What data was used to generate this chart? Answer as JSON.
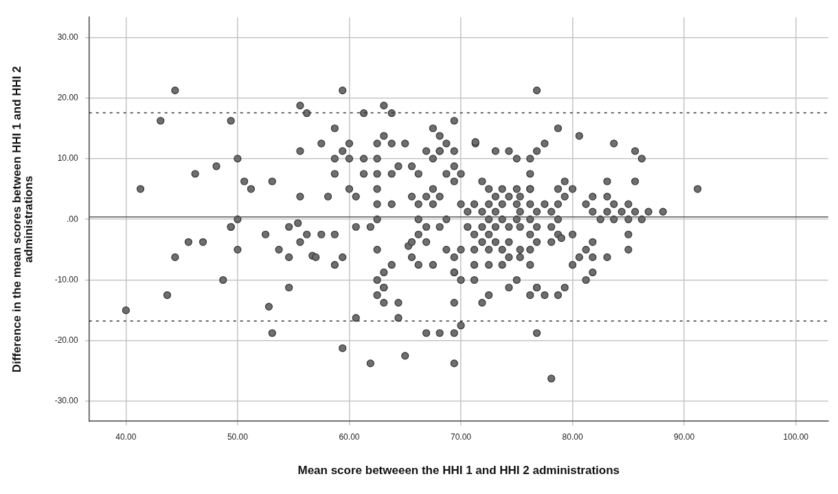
{
  "chart_data": {
    "type": "scatter",
    "xlabel": "Mean score betweeen the HHI 1 and HHI 2 administrations",
    "ylabel": "Difference in the mean scores between HHI 1 and HHI 2 administrations",
    "xlim": [
      36.7,
      102.9
    ],
    "ylim": [
      -33.3,
      33.3
    ],
    "xticks": [
      {
        "value": 40,
        "label": "40.00"
      },
      {
        "value": 50,
        "label": "50.00"
      },
      {
        "value": 60,
        "label": "60.00"
      },
      {
        "value": 70,
        "label": "70.00"
      },
      {
        "value": 80,
        "label": "80.00"
      },
      {
        "value": 90,
        "label": "90.00"
      },
      {
        "value": 100,
        "label": "100.00"
      }
    ],
    "yticks": [
      {
        "value": -30,
        "label": "-30.00"
      },
      {
        "value": -20,
        "label": "-20.00"
      },
      {
        "value": -10,
        "label": "-10.00"
      },
      {
        "value": 0,
        "label": ".00"
      },
      {
        "value": 10,
        "label": "10.00"
      },
      {
        "value": 20,
        "label": "20.00"
      },
      {
        "value": 30,
        "label": "30.00"
      }
    ],
    "grid": true,
    "legend": false,
    "marker": "circle",
    "ref_lines": [
      {
        "axis": "y",
        "value": 0.39,
        "color": "#555555",
        "line_style": "solid"
      },
      {
        "axis": "y",
        "value": 17.56,
        "color": "#333333",
        "line_style": "dashed"
      },
      {
        "axis": "y",
        "value": -16.78,
        "color": "#333333",
        "line_style": "dashed"
      }
    ],
    "series": [
      {
        "color": "#6e6e6e",
        "x": [
          40,
          41.3,
          43.1,
          43.7,
          44.4,
          44.4,
          45.6,
          46.2,
          46.9,
          48.1,
          48.7,
          49.4,
          49.4,
          49.4,
          50,
          50,
          50,
          50.6,
          51.2,
          52.5,
          52.8,
          53.1,
          53.1,
          53.7,
          54.6,
          54.6,
          54.6,
          55.4,
          55.6,
          55.6,
          55.6,
          55.6,
          56.2,
          56.2,
          56.7,
          57,
          57.5,
          57.5,
          58.1,
          58.7,
          58.7,
          58.7,
          58.7,
          58.7,
          59.4,
          59.4,
          59.4,
          59.4,
          60,
          60,
          60,
          60.6,
          60.6,
          60.6,
          61.3,
          61.3,
          61.3,
          61.9,
          61.9,
          62.5,
          62.5,
          62.5,
          62.5,
          62.5,
          62.5,
          62.5,
          62.5,
          62.5,
          63.1,
          63.1,
          63.1,
          63.1,
          63.1,
          63.1,
          63.8,
          63.8,
          63.8,
          63.8,
          63.8,
          64.4,
          64.4,
          64.4,
          65,
          65,
          65.3,
          65.6,
          65.6,
          65.6,
          65.6,
          66.2,
          66.2,
          66.2,
          66.2,
          66.2,
          66.9,
          66.9,
          66.9,
          66.9,
          66.9,
          67.5,
          67.5,
          67.5,
          67.5,
          67.5,
          68.1,
          68.1,
          68.1,
          68.1,
          68.1,
          68.1,
          68.7,
          68.7,
          68.7,
          68.7,
          69.4,
          69.4,
          69.4,
          69.4,
          69.4,
          69.4,
          69.4,
          69.4,
          69.4,
          69.4,
          70,
          70,
          70,
          70,
          70,
          70.6,
          70.6,
          71.2,
          71.2,
          71.2,
          71.2,
          71.2,
          71.3,
          71.3,
          71.9,
          71.9,
          71.9,
          71.9,
          71.9,
          72.5,
          72.5,
          72.5,
          72.5,
          72.5,
          72.5,
          72.5,
          73.1,
          73.1,
          73.1,
          73.1,
          73.1,
          73.7,
          73.7,
          73.7,
          73.7,
          73.7,
          74.3,
          74.3,
          74.3,
          74.3,
          74.3,
          74.3,
          75,
          75,
          75,
          75,
          75,
          75.3,
          75.3,
          75.3,
          75.3,
          75.3,
          76.2,
          76.2,
          76.2,
          76.2,
          76.2,
          76.2,
          76.2,
          76.2,
          76.2,
          76.2,
          76.8,
          76.8,
          76.8,
          76.8,
          76.8,
          76.8,
          76.8,
          76.8,
          77.5,
          77.5,
          77.5,
          78.1,
          78.1,
          78.1,
          78.1,
          78.7,
          78.7,
          78.7,
          78.7,
          78.7,
          78.7,
          79,
          79.3,
          79.3,
          79.3,
          80,
          80,
          80,
          80.6,
          80.6,
          81.2,
          81.2,
          81.2,
          81.8,
          81.8,
          81.8,
          81.8,
          81.8,
          82.5,
          83.1,
          83.1,
          83.1,
          83.1,
          83.7,
          83.7,
          83.7,
          84.4,
          85,
          85,
          85,
          85,
          85.6,
          85.6,
          85.6,
          86.2,
          86.2,
          86.8,
          88.1,
          91.2
        ],
        "values": [
          -15,
          5,
          16.25,
          -12.5,
          21.25,
          -6.25,
          -3.75,
          7.5,
          -3.75,
          8.75,
          -10,
          16.25,
          -1.25,
          -1.25,
          10,
          0,
          -5,
          6.25,
          5,
          -2.5,
          -14.4,
          6.25,
          -18.75,
          -5,
          -1.25,
          -6.25,
          -11.25,
          -0.63,
          18.75,
          11.25,
          3.75,
          -3.75,
          17.5,
          -2.5,
          -6,
          -6.25,
          12.5,
          -2.5,
          3.75,
          15,
          10,
          7.5,
          -2.5,
          -7.5,
          21.25,
          11.25,
          -6.25,
          -21.25,
          12.5,
          10,
          5,
          3.75,
          -1.25,
          -16.25,
          17.5,
          10,
          7.5,
          -1.25,
          -23.75,
          12.5,
          10,
          7.5,
          5,
          2.5,
          0,
          -5,
          -10,
          -12.5,
          18.75,
          13.75,
          -8.75,
          -11.25,
          -13.75,
          -11.25,
          17.5,
          12.5,
          7.5,
          2.5,
          -7.5,
          8.75,
          -13.75,
          -16.25,
          12.5,
          -22.5,
          -4.4,
          8.75,
          3.75,
          -3.75,
          -6.25,
          7.5,
          2.5,
          0,
          -2.5,
          -7.5,
          11.25,
          3.75,
          -1.25,
          -3.75,
          -18.75,
          15,
          10,
          5,
          2.5,
          -7.5,
          13.75,
          11.25,
          11.25,
          3.75,
          -1.25,
          -18.75,
          12.5,
          7.5,
          0,
          -5,
          16.25,
          11.25,
          8.75,
          6.25,
          -6.25,
          -8.75,
          -13.75,
          -18.75,
          -23.75,
          -8.75,
          7.5,
          2.5,
          -5,
          -10,
          -17.5,
          1.25,
          -1.25,
          2.5,
          -2.5,
          -5,
          -7.5,
          -10,
          12.5,
          12.75,
          6.25,
          1.25,
          -1.25,
          -3.75,
          -13.75,
          5,
          2.5,
          0,
          -2.5,
          -5,
          -7.5,
          -12.5,
          11.25,
          3.75,
          1.25,
          -1.25,
          -3.75,
          5,
          2.5,
          0,
          -5,
          -7.5,
          11.25,
          3.75,
          -1.25,
          -3.75,
          -6.25,
          -11.25,
          10,
          5,
          2.5,
          0,
          -10,
          3.75,
          1.25,
          -1.25,
          -5,
          -6.25,
          10,
          7.5,
          5,
          5,
          2.5,
          0,
          -2.5,
          -5,
          -7.5,
          -12.5,
          21.25,
          11.25,
          1.25,
          -1.25,
          -3.75,
          -11.25,
          -11.25,
          -18.75,
          12.5,
          2.5,
          -12.5,
          1.25,
          -1.25,
          -3.75,
          -26.25,
          15,
          5,
          2.5,
          0,
          -2.5,
          -12.5,
          -3.1,
          6.25,
          3.75,
          -11.25,
          5,
          -2.5,
          -7.5,
          13.75,
          -6.25,
          2.5,
          -5,
          -10,
          3.75,
          1.25,
          -3.75,
          -6.25,
          -8.75,
          0,
          6.25,
          3.75,
          1.25,
          -6.25,
          12.5,
          2.5,
          0,
          1.25,
          2.5,
          0,
          -2.5,
          -5,
          11.25,
          6.25,
          1.25,
          10,
          0,
          1.25,
          1.25,
          5
        ]
      }
    ]
  }
}
